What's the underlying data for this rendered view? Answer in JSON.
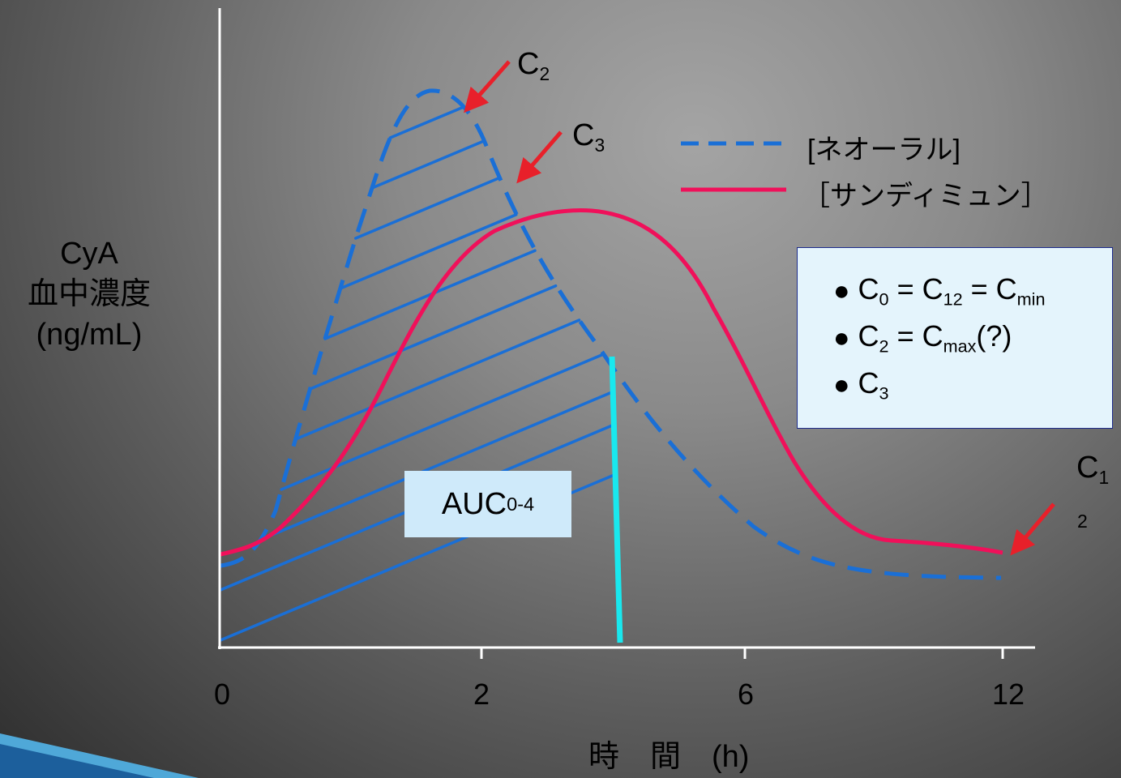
{
  "y_axis_label": [
    "CyA",
    "血中濃度",
    "(ng/mL)"
  ],
  "x_axis_label": "時　間　(h)",
  "x_ticks": [
    "0",
    "2",
    "6",
    "12"
  ],
  "point_labels": {
    "c2": {
      "base": "C",
      "sub": "2"
    },
    "c3": {
      "base": "C",
      "sub": "3"
    },
    "c12": {
      "base": "C",
      "sub": "1",
      "wrapped": "2"
    }
  },
  "legend": [
    {
      "label": "[ネオーラル]",
      "style": "dashed",
      "color": "#1a6fd6"
    },
    {
      "label": "［サンディミュン］",
      "style": "solid",
      "color": "#f0105a"
    }
  ],
  "auc_label": {
    "base": "AUC",
    "sub": "0-4"
  },
  "info_box": [
    {
      "parts": [
        {
          "t": "C"
        },
        {
          "s": "0"
        },
        {
          "t": " = C"
        },
        {
          "s": "12"
        },
        {
          "t": " = C"
        },
        {
          "s": "min"
        }
      ]
    },
    {
      "parts": [
        {
          "t": "C"
        },
        {
          "s": "2"
        },
        {
          "t": " = C"
        },
        {
          "s": "max"
        },
        {
          "t": "(?)"
        }
      ]
    },
    {
      "parts": [
        {
          "t": "C"
        },
        {
          "s": "3"
        }
      ]
    }
  ],
  "colors": {
    "neoral": "#1a6fd6",
    "sandimmun": "#f0105a",
    "auc_cutoff": "#19e8ee",
    "arrow": "#e8202a",
    "axis": "#ffffff"
  }
}
